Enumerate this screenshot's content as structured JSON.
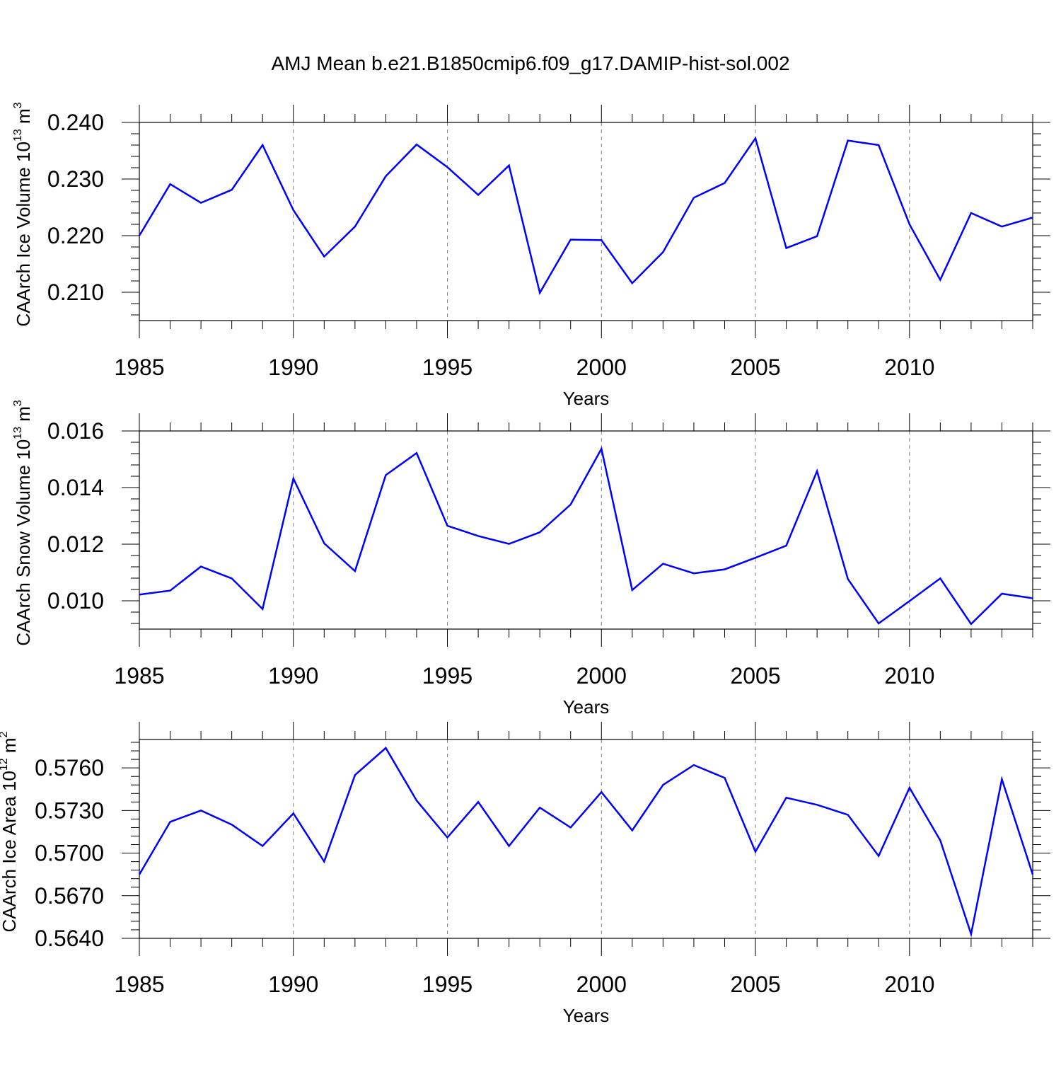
{
  "title": "AMJ Mean b.e21.B1850cmip6.f09_g17.DAMIP-hist-sol.002",
  "line_color": "#0000ff",
  "chart_data": [
    {
      "type": "line",
      "ylabel": "CAArch Ice Volume",
      "ylabel_unit_base": "10",
      "ylabel_unit_exp": "13",
      "ylabel_unit_tail": "m",
      "ylabel_unit_tail_exp": "3",
      "xlabel": "Years",
      "xlim": [
        1985,
        2014
      ],
      "ylim": [
        0.205,
        0.24
      ],
      "x_ticks": [
        "1985",
        "1990",
        "1995",
        "2000",
        "2005",
        "2010"
      ],
      "y_ticks": [
        "0.210",
        "0.220",
        "0.230",
        "0.240"
      ],
      "grid": "vertical dashed at major x ticks",
      "x": [
        1985,
        1986,
        1987,
        1988,
        1989,
        1990,
        1991,
        1992,
        1993,
        1994,
        1995,
        1996,
        1997,
        1998,
        1999,
        2000,
        2001,
        2002,
        2003,
        2004,
        2005,
        2006,
        2007,
        2008,
        2009,
        2010,
        2011,
        2012,
        2013,
        2014
      ],
      "y": [
        0.22,
        0.2291,
        0.2258,
        0.2281,
        0.236,
        0.2245,
        0.2163,
        0.2216,
        0.2305,
        0.2361,
        0.2321,
        0.2272,
        0.2324,
        0.2099,
        0.2193,
        0.2192,
        0.2116,
        0.2171,
        0.2267,
        0.2293,
        0.2372,
        0.2178,
        0.2199,
        0.2368,
        0.236,
        0.222,
        0.2122,
        0.224,
        0.2216,
        0.2232
      ]
    },
    {
      "type": "line",
      "ylabel": "CAArch Snow Volume",
      "ylabel_unit_base": "10",
      "ylabel_unit_exp": "13",
      "ylabel_unit_tail": "m",
      "ylabel_unit_tail_exp": "3",
      "xlabel": "Years",
      "xlim": [
        1985,
        2014
      ],
      "ylim": [
        0.009,
        0.016
      ],
      "x_ticks": [
        "1985",
        "1990",
        "1995",
        "2000",
        "2005",
        "2010"
      ],
      "y_ticks": [
        "0.010",
        "0.012",
        "0.014",
        "0.016"
      ],
      "grid": "vertical dashed at major x ticks",
      "x": [
        1985,
        1986,
        1987,
        1988,
        1989,
        1990,
        1991,
        1992,
        1993,
        1994,
        1995,
        1996,
        1997,
        1998,
        1999,
        2000,
        2001,
        2002,
        2003,
        2004,
        2005,
        2006,
        2007,
        2008,
        2009,
        2010,
        2011,
        2012,
        2013,
        2014
      ],
      "y": [
        0.01022,
        0.01036,
        0.01121,
        0.01079,
        0.00971,
        0.01432,
        0.01203,
        0.01105,
        0.01444,
        0.01522,
        0.01265,
        0.01229,
        0.01201,
        0.01242,
        0.0134,
        0.01537,
        0.01038,
        0.01131,
        0.01097,
        0.01111,
        0.01152,
        0.01195,
        0.01458,
        0.01077,
        0.0092,
        0.00999,
        0.01079,
        0.00918,
        0.01025,
        0.01009
      ]
    },
    {
      "type": "line",
      "ylabel": "CAArch Ice Area",
      "ylabel_unit_base": "10",
      "ylabel_unit_exp": "12",
      "ylabel_unit_tail": "m",
      "ylabel_unit_tail_exp": "2",
      "xlabel": "Years",
      "xlim": [
        1985,
        2014
      ],
      "ylim": [
        0.564,
        0.578
      ],
      "x_ticks": [
        "1985",
        "1990",
        "1995",
        "2000",
        "2005",
        "2010"
      ],
      "y_ticks": [
        "0.5640",
        "0.5670",
        "0.5700",
        "0.5730",
        "0.5760"
      ],
      "grid": "vertical dashed at major x ticks",
      "x": [
        1985,
        1986,
        1987,
        1988,
        1989,
        1990,
        1991,
        1992,
        1993,
        1994,
        1995,
        1996,
        1997,
        1998,
        1999,
        2000,
        2001,
        2002,
        2003,
        2004,
        2005,
        2006,
        2007,
        2008,
        2009,
        2010,
        2011,
        2012,
        2013,
        2014
      ],
      "y": [
        0.5685,
        0.5722,
        0.573,
        0.572,
        0.5705,
        0.5728,
        0.5694,
        0.5755,
        0.5774,
        0.5737,
        0.5711,
        0.5736,
        0.5705,
        0.5732,
        0.5718,
        0.5743,
        0.5716,
        0.5748,
        0.5762,
        0.5753,
        0.5701,
        0.5739,
        0.5734,
        0.5727,
        0.5698,
        0.5746,
        0.5709,
        0.5643,
        0.5752,
        0.5685
      ]
    }
  ]
}
